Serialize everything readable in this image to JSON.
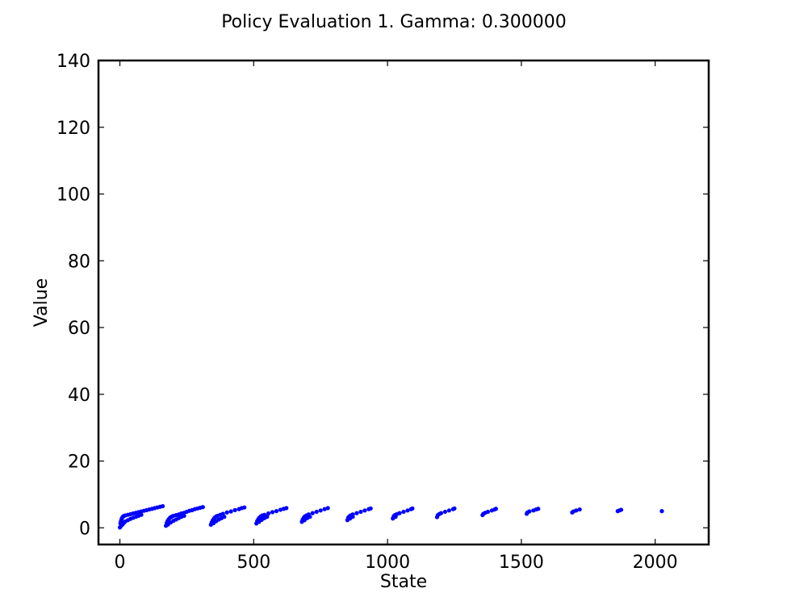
{
  "chart_data": {
    "type": "scatter",
    "title": "Policy Evaluation 1. Gamma: 0.300000",
    "xlabel": "State",
    "ylabel": "Value",
    "xlim": [
      -80,
      2200
    ],
    "ylim": [
      -5,
      140
    ],
    "xticks": [
      0,
      500,
      1000,
      1500,
      2000
    ],
    "yticks": [
      0,
      20,
      40,
      60,
      80,
      100,
      120,
      140
    ],
    "grid": false,
    "legend": "none",
    "marker_color": "#0000ff",
    "series": [
      {
        "points": [
          [
            0,
            0.1
          ],
          [
            2,
            1.3
          ],
          [
            4,
            2.0
          ],
          [
            6,
            2.5
          ],
          [
            8,
            2.9
          ],
          [
            10,
            3.2
          ],
          [
            12,
            3.4
          ],
          [
            15,
            3.55
          ],
          [
            20,
            3.7
          ],
          [
            30,
            3.9
          ],
          [
            40,
            4.1
          ],
          [
            50,
            4.3
          ],
          [
            60,
            4.5
          ],
          [
            70,
            4.7
          ],
          [
            80,
            4.9
          ],
          [
            90,
            5.1
          ],
          [
            100,
            5.3
          ],
          [
            110,
            5.5
          ],
          [
            120,
            5.7
          ],
          [
            130,
            5.9
          ],
          [
            140,
            6.1
          ],
          [
            150,
            6.3
          ],
          [
            160,
            6.5
          ],
          [
            5,
            0.6
          ],
          [
            10,
            1.0
          ],
          [
            15,
            1.5
          ],
          [
            20,
            1.9
          ],
          [
            30,
            2.3
          ],
          [
            40,
            2.7
          ],
          [
            50,
            3.0
          ],
          [
            60,
            3.3
          ],
          [
            70,
            3.6
          ],
          [
            80,
            3.9
          ],
          [
            172,
            0.6
          ],
          [
            175,
            1.4
          ],
          [
            178,
            2.0
          ],
          [
            182,
            2.5
          ],
          [
            186,
            2.9
          ],
          [
            190,
            3.2
          ],
          [
            195,
            3.4
          ],
          [
            200,
            3.6
          ],
          [
            210,
            3.8
          ],
          [
            220,
            4.0
          ],
          [
            230,
            4.3
          ],
          [
            240,
            4.5
          ],
          [
            250,
            4.8
          ],
          [
            260,
            5.1
          ],
          [
            270,
            5.3
          ],
          [
            280,
            5.6
          ],
          [
            290,
            5.8
          ],
          [
            300,
            6.0
          ],
          [
            310,
            6.2
          ],
          [
            180,
            1.0
          ],
          [
            190,
            1.6
          ],
          [
            200,
            2.1
          ],
          [
            210,
            2.5
          ],
          [
            220,
            2.9
          ],
          [
            230,
            3.3
          ],
          [
            240,
            3.6
          ],
          [
            340,
            0.9
          ],
          [
            343,
            1.6
          ],
          [
            347,
            2.2
          ],
          [
            351,
            2.7
          ],
          [
            355,
            3.1
          ],
          [
            360,
            3.4
          ],
          [
            365,
            3.6
          ],
          [
            375,
            3.9
          ],
          [
            385,
            4.2
          ],
          [
            400,
            4.6
          ],
          [
            415,
            4.9
          ],
          [
            430,
            5.3
          ],
          [
            445,
            5.6
          ],
          [
            455,
            5.9
          ],
          [
            465,
            6.1
          ],
          [
            350,
            1.4
          ],
          [
            360,
            2.0
          ],
          [
            370,
            2.5
          ],
          [
            380,
            2.9
          ],
          [
            390,
            3.3
          ],
          [
            510,
            1.3
          ],
          [
            513,
            2.0
          ],
          [
            517,
            2.6
          ],
          [
            521,
            3.0
          ],
          [
            526,
            3.4
          ],
          [
            532,
            3.7
          ],
          [
            540,
            3.9
          ],
          [
            555,
            4.3
          ],
          [
            570,
            4.7
          ],
          [
            585,
            5.0
          ],
          [
            600,
            5.4
          ],
          [
            612,
            5.7
          ],
          [
            622,
            5.9
          ],
          [
            520,
            1.8
          ],
          [
            530,
            2.4
          ],
          [
            540,
            2.9
          ],
          [
            550,
            3.3
          ],
          [
            680,
            1.8
          ],
          [
            683,
            2.5
          ],
          [
            687,
            3.0
          ],
          [
            691,
            3.4
          ],
          [
            697,
            3.7
          ],
          [
            705,
            4.0
          ],
          [
            720,
            4.4
          ],
          [
            735,
            4.8
          ],
          [
            750,
            5.2
          ],
          [
            765,
            5.6
          ],
          [
            777,
            5.9
          ],
          [
            690,
            2.3
          ],
          [
            700,
            2.9
          ],
          [
            710,
            3.3
          ],
          [
            850,
            2.3
          ],
          [
            853,
            3.0
          ],
          [
            857,
            3.4
          ],
          [
            862,
            3.7
          ],
          [
            870,
            4.0
          ],
          [
            885,
            4.4
          ],
          [
            900,
            4.8
          ],
          [
            915,
            5.2
          ],
          [
            930,
            5.6
          ],
          [
            937,
            5.8
          ],
          [
            860,
            2.8
          ],
          [
            870,
            3.3
          ],
          [
            1020,
            2.8
          ],
          [
            1023,
            3.4
          ],
          [
            1027,
            3.8
          ],
          [
            1035,
            4.1
          ],
          [
            1045,
            4.4
          ],
          [
            1060,
            4.8
          ],
          [
            1075,
            5.2
          ],
          [
            1088,
            5.6
          ],
          [
            1093,
            5.8
          ],
          [
            1030,
            3.3
          ],
          [
            1185,
            3.2
          ],
          [
            1188,
            3.8
          ],
          [
            1193,
            4.1
          ],
          [
            1200,
            4.4
          ],
          [
            1215,
            4.8
          ],
          [
            1230,
            5.2
          ],
          [
            1245,
            5.6
          ],
          [
            1250,
            5.8
          ],
          [
            1355,
            3.8
          ],
          [
            1358,
            4.2
          ],
          [
            1365,
            4.5
          ],
          [
            1375,
            4.8
          ],
          [
            1390,
            5.2
          ],
          [
            1400,
            5.5
          ],
          [
            1405,
            5.7
          ],
          [
            1520,
            4.2
          ],
          [
            1523,
            4.6
          ],
          [
            1530,
            4.9
          ],
          [
            1545,
            5.2
          ],
          [
            1555,
            5.5
          ],
          [
            1563,
            5.7
          ],
          [
            1690,
            4.6
          ],
          [
            1695,
            4.9
          ],
          [
            1705,
            5.2
          ],
          [
            1718,
            5.5
          ],
          [
            1860,
            5.0
          ],
          [
            1866,
            5.2
          ],
          [
            1873,
            5.4
          ],
          [
            2025,
            5.0
          ]
        ]
      }
    ]
  }
}
